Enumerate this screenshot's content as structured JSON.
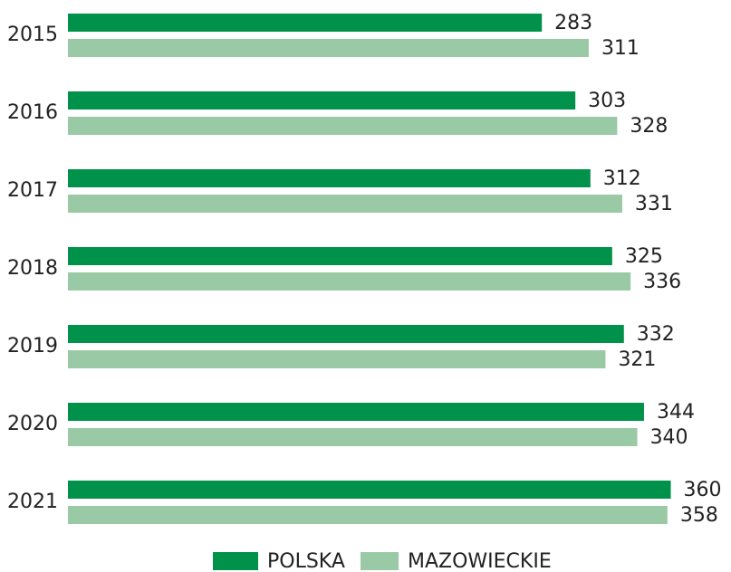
{
  "chart_data": {
    "type": "bar",
    "orientation": "horizontal",
    "categories": [
      "2015",
      "2016",
      "2017",
      "2018",
      "2019",
      "2020",
      "2021"
    ],
    "series": [
      {
        "name": "POLSKA",
        "color": "#00914a",
        "values": [
          283,
          303,
          312,
          325,
          332,
          344,
          360
        ]
      },
      {
        "name": "MAZOWIECKIE",
        "color": "#99c9a5",
        "values": [
          311,
          328,
          331,
          336,
          321,
          340,
          358
        ]
      }
    ],
    "xlim": [
      0,
      390
    ],
    "legend": "bottom"
  }
}
